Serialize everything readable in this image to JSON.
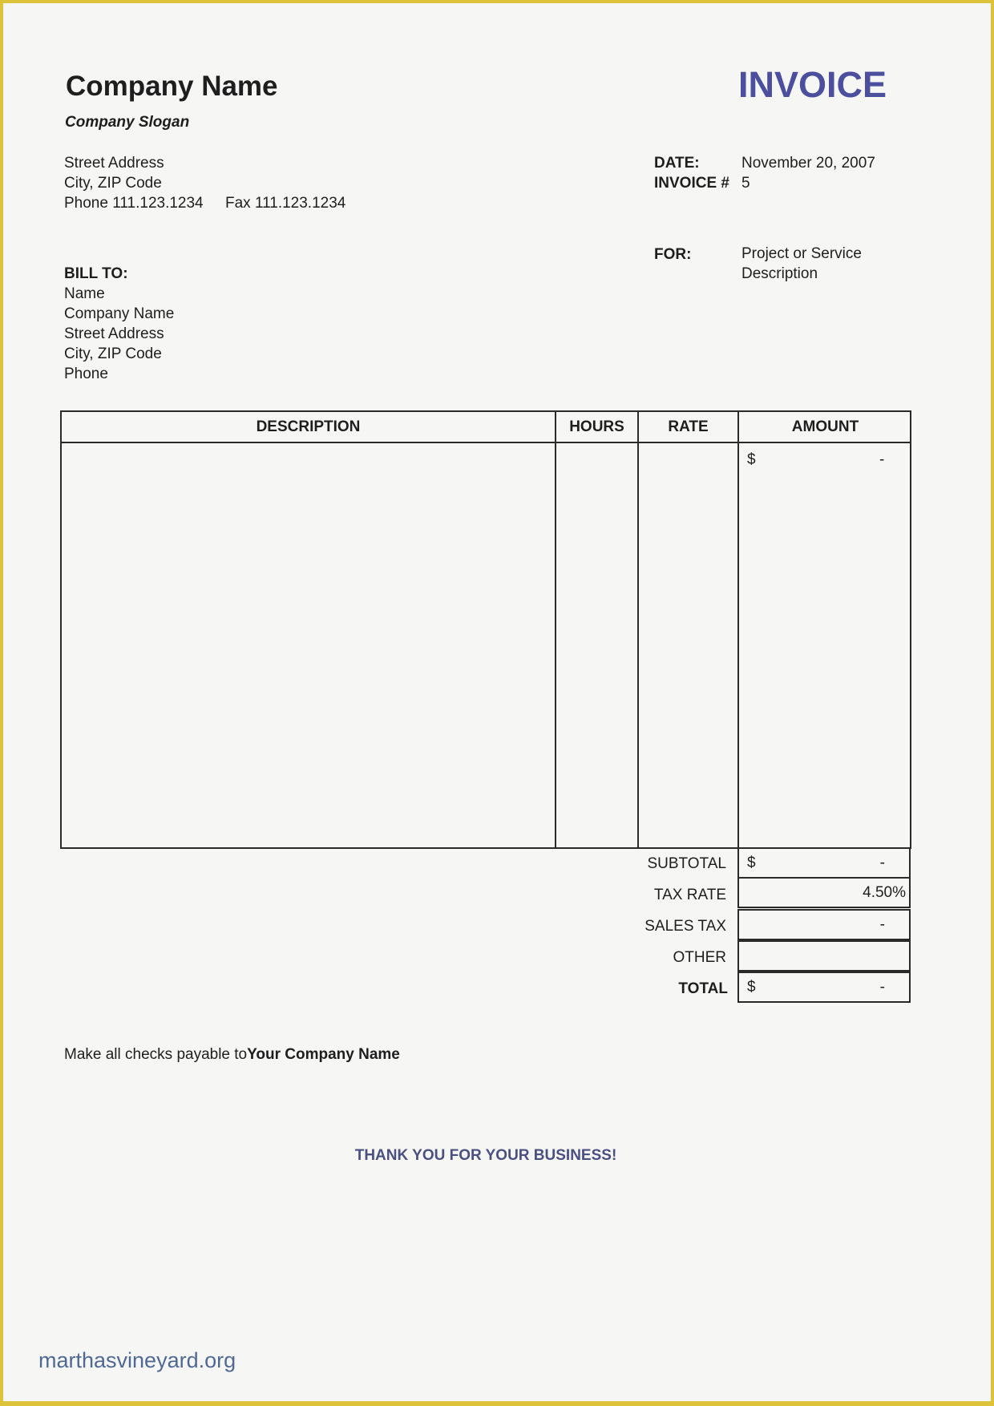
{
  "company": {
    "name": "Company Name",
    "slogan": "Company Slogan",
    "street": "Street Address",
    "city_zip": "City, ZIP Code",
    "phone": "Phone 111.123.1234",
    "fax": "Fax 111.123.1234"
  },
  "title": "INVOICE",
  "meta": {
    "date_label": "DATE:",
    "date_value": "November 20, 2007",
    "invoice_label": "INVOICE #",
    "invoice_value": "5",
    "for_label": "FOR:",
    "for_value_line1": "Project or Service",
    "for_value_line2": "Description"
  },
  "bill_to": {
    "label": "BILL TO:",
    "lines": [
      "Name",
      "Company Name",
      "Street Address",
      "City, ZIP Code",
      "Phone"
    ]
  },
  "table": {
    "headers": [
      "DESCRIPTION",
      "HOURS",
      "RATE",
      "AMOUNT"
    ],
    "rows": [
      {
        "description": "",
        "hours": "",
        "rate": "",
        "amount_currency": "$",
        "amount": "-"
      }
    ]
  },
  "totals": {
    "subtotal": {
      "label": "SUBTOTAL",
      "currency": "$",
      "value": "-"
    },
    "tax_rate": {
      "label": "TAX RATE",
      "value": "4.50%"
    },
    "sales_tax": {
      "label": "SALES TAX",
      "value": "-"
    },
    "other": {
      "label": "OTHER",
      "value": ""
    },
    "total": {
      "label": "TOTAL",
      "currency": "$",
      "value": "-"
    }
  },
  "footer": {
    "checks_prefix": "Make all checks payable to",
    "checks_name": "Your Company Name",
    "thank_you": "THANK YOU FOR YOUR BUSINESS!"
  },
  "watermark": "marthasvineyard.org",
  "colors": {
    "accent": "#4b4f9e",
    "thank_you": "#4a5080",
    "border": "#dcc33a"
  }
}
